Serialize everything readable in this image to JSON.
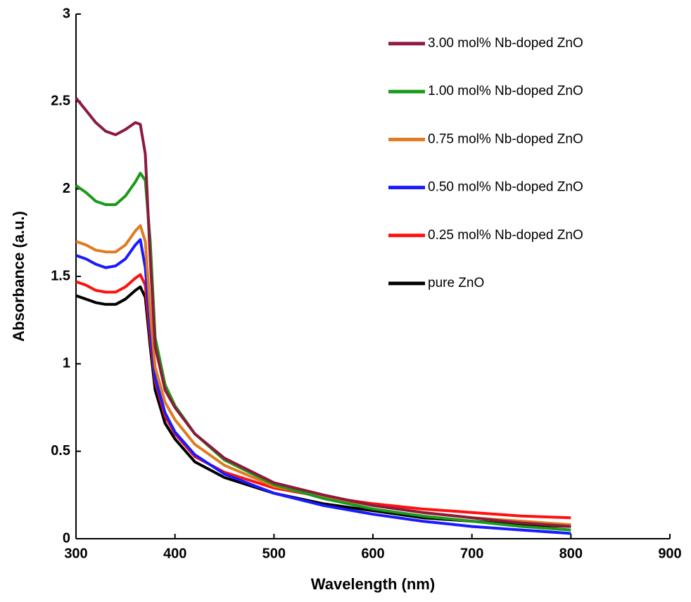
{
  "chart_data": {
    "type": "line",
    "x_label": "Wavelength (nm)",
    "y_label": "Absorbance (a.u.)",
    "x": [
      300,
      310,
      320,
      330,
      340,
      350,
      360,
      365,
      370,
      375,
      380,
      390,
      400,
      420,
      450,
      500,
      550,
      600,
      650,
      700,
      750,
      800
    ],
    "series": [
      {
        "name": "3.00 mol% Nb-doped ZnO",
        "color": "#8b1a3c",
        "values": [
          2.52,
          2.45,
          2.38,
          2.33,
          2.31,
          2.34,
          2.38,
          2.37,
          2.2,
          1.6,
          1.1,
          0.85,
          0.75,
          0.6,
          0.46,
          0.32,
          0.25,
          0.19,
          0.15,
          0.12,
          0.09,
          0.07
        ]
      },
      {
        "name": "1.00 mol% Nb-doped ZnO",
        "color": "#1a9a1a",
        "values": [
          2.02,
          1.98,
          1.93,
          1.91,
          1.91,
          1.96,
          2.04,
          2.09,
          2.05,
          1.7,
          1.15,
          0.88,
          0.76,
          0.6,
          0.45,
          0.31,
          0.23,
          0.17,
          0.13,
          0.1,
          0.07,
          0.05
        ]
      },
      {
        "name": "0.75 mol% Nb-doped ZnO",
        "color": "#e07b20",
        "values": [
          1.7,
          1.68,
          1.65,
          1.64,
          1.64,
          1.68,
          1.76,
          1.79,
          1.7,
          1.3,
          0.98,
          0.78,
          0.68,
          0.54,
          0.42,
          0.3,
          0.24,
          0.19,
          0.15,
          0.12,
          0.1,
          0.08
        ]
      },
      {
        "name": "0.50 mol% Nb-doped ZnO",
        "color": "#1a1aff",
        "values": [
          1.62,
          1.6,
          1.57,
          1.55,
          1.56,
          1.6,
          1.68,
          1.71,
          1.55,
          1.2,
          0.92,
          0.72,
          0.61,
          0.48,
          0.37,
          0.26,
          0.19,
          0.14,
          0.1,
          0.07,
          0.05,
          0.03
        ]
      },
      {
        "name": "0.25 mol% Nb-doped ZnO",
        "color": "#ff1010",
        "values": [
          1.47,
          1.45,
          1.42,
          1.41,
          1.41,
          1.44,
          1.49,
          1.51,
          1.45,
          1.15,
          0.9,
          0.7,
          0.6,
          0.47,
          0.38,
          0.29,
          0.24,
          0.2,
          0.17,
          0.15,
          0.13,
          0.12
        ]
      },
      {
        "name": "pure ZnO",
        "color": "#000000",
        "values": [
          1.39,
          1.37,
          1.35,
          1.34,
          1.34,
          1.37,
          1.42,
          1.44,
          1.38,
          1.1,
          0.85,
          0.66,
          0.57,
          0.44,
          0.35,
          0.26,
          0.2,
          0.16,
          0.12,
          0.1,
          0.08,
          0.07
        ]
      }
    ],
    "xlim": [
      300,
      900
    ],
    "xticks": [
      300,
      400,
      500,
      600,
      700,
      800,
      900
    ],
    "ylim": [
      0,
      3
    ],
    "yticks": [
      0,
      0.5,
      1,
      1.5,
      2,
      2.5,
      3
    ],
    "legend": "upper right"
  }
}
